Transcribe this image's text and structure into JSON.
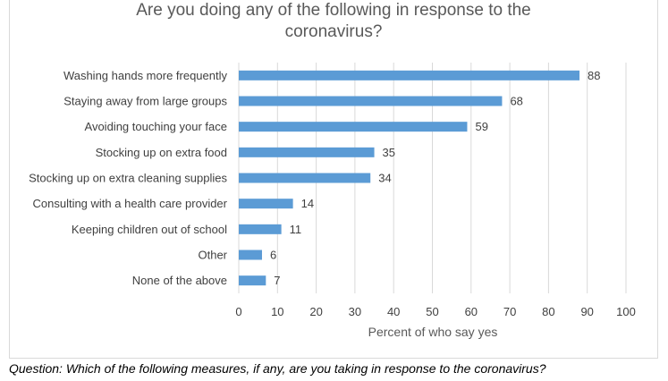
{
  "chart_data": {
    "type": "bar",
    "orientation": "horizontal",
    "title_lines": [
      "Are you doing any of the following in response to the",
      "coronavirus?"
    ],
    "categories": [
      "Washing hands more frequently",
      "Staying away from large groups",
      "Avoiding touching your face",
      "Stocking up on extra food",
      "Stocking up on extra cleaning supplies",
      "Consulting with a health care provider",
      "Keeping children out of school",
      "Other",
      "None of the above"
    ],
    "values": [
      88,
      68,
      59,
      35,
      34,
      14,
      11,
      6,
      7
    ],
    "xlabel": "Percent of who say yes",
    "xlim": [
      0,
      100
    ],
    "xticks": [
      0,
      10,
      20,
      30,
      40,
      50,
      60,
      70,
      80,
      90,
      100
    ],
    "grid": "vertical",
    "bar_color": "#5b9bd5"
  },
  "caption": "Question: Which of the following measures, if any, are you taking in response to the coronavirus?"
}
